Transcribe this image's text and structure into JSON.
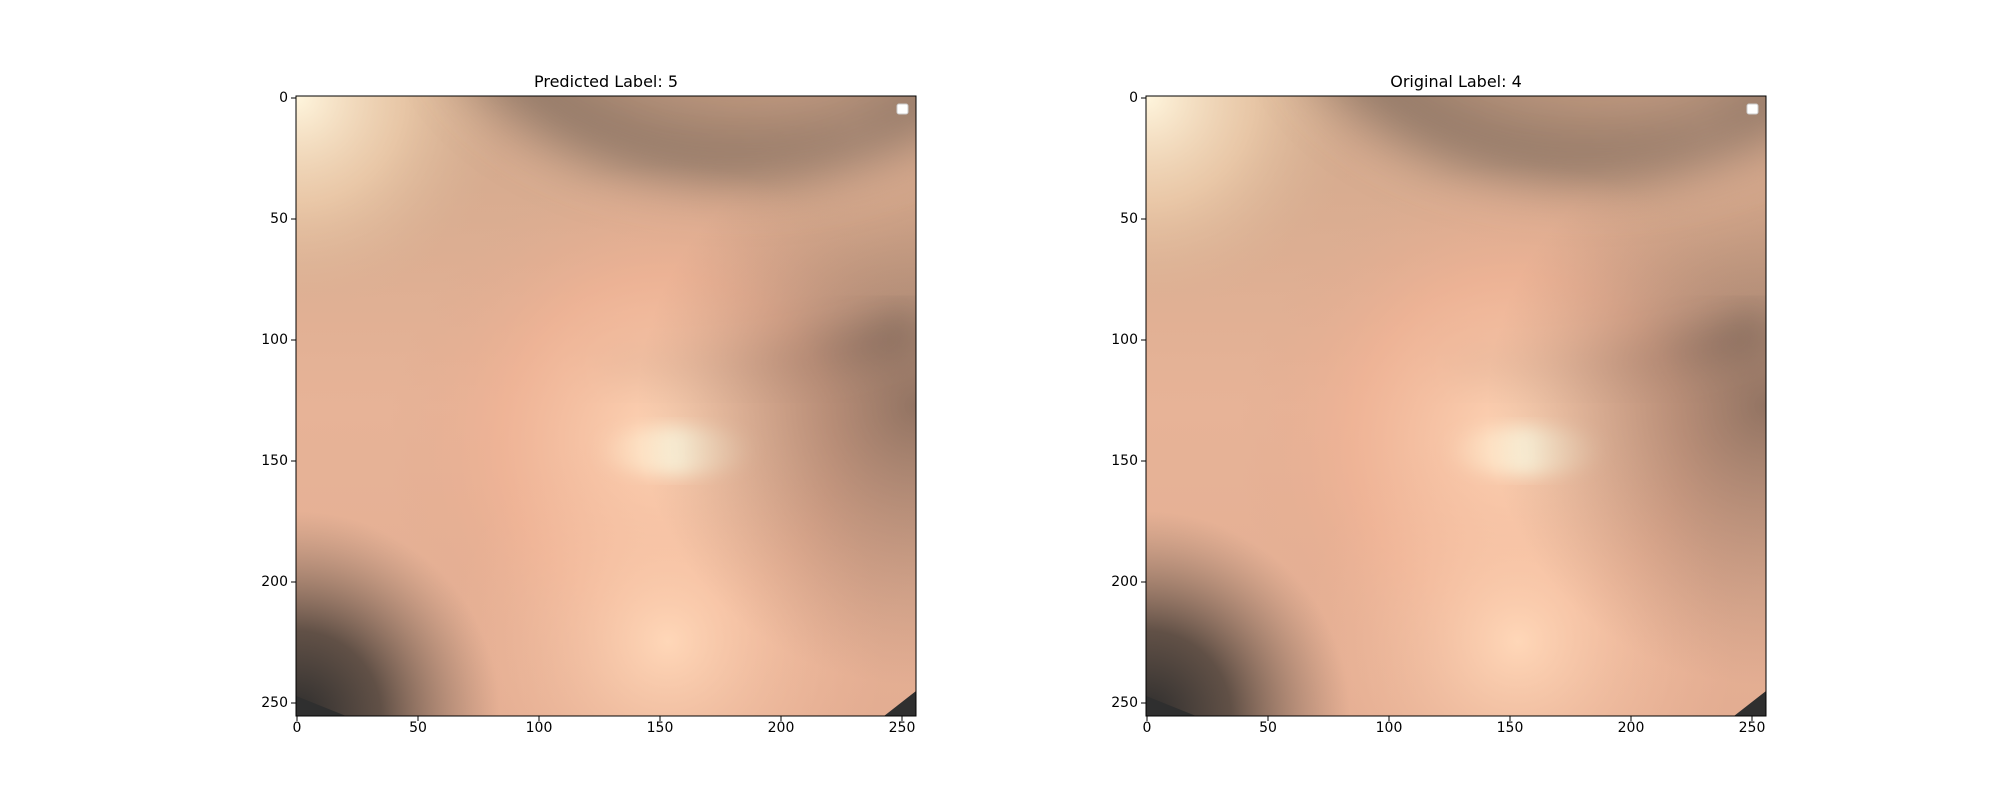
{
  "figure": {
    "panels": [
      {
        "title": "Predicted Label: 5",
        "xticks": [
          "0",
          "50",
          "100",
          "150",
          "200",
          "250"
        ],
        "yticks": [
          "0",
          "50",
          "100",
          "150",
          "200",
          "250"
        ]
      },
      {
        "title": "Original Label: 4",
        "xticks": [
          "0",
          "50",
          "100",
          "150",
          "200",
          "250"
        ],
        "yticks": [
          "0",
          "50",
          "100",
          "150",
          "200",
          "250"
        ]
      }
    ]
  },
  "colors": {
    "tissue_light": "#fde4c6",
    "tissue_mid": "#e0a98f",
    "tissue_dark": "#8e7666",
    "fold_shadow": "#3a3530",
    "vignette": "#2f2f2f",
    "highlight": "#fff6dc"
  }
}
